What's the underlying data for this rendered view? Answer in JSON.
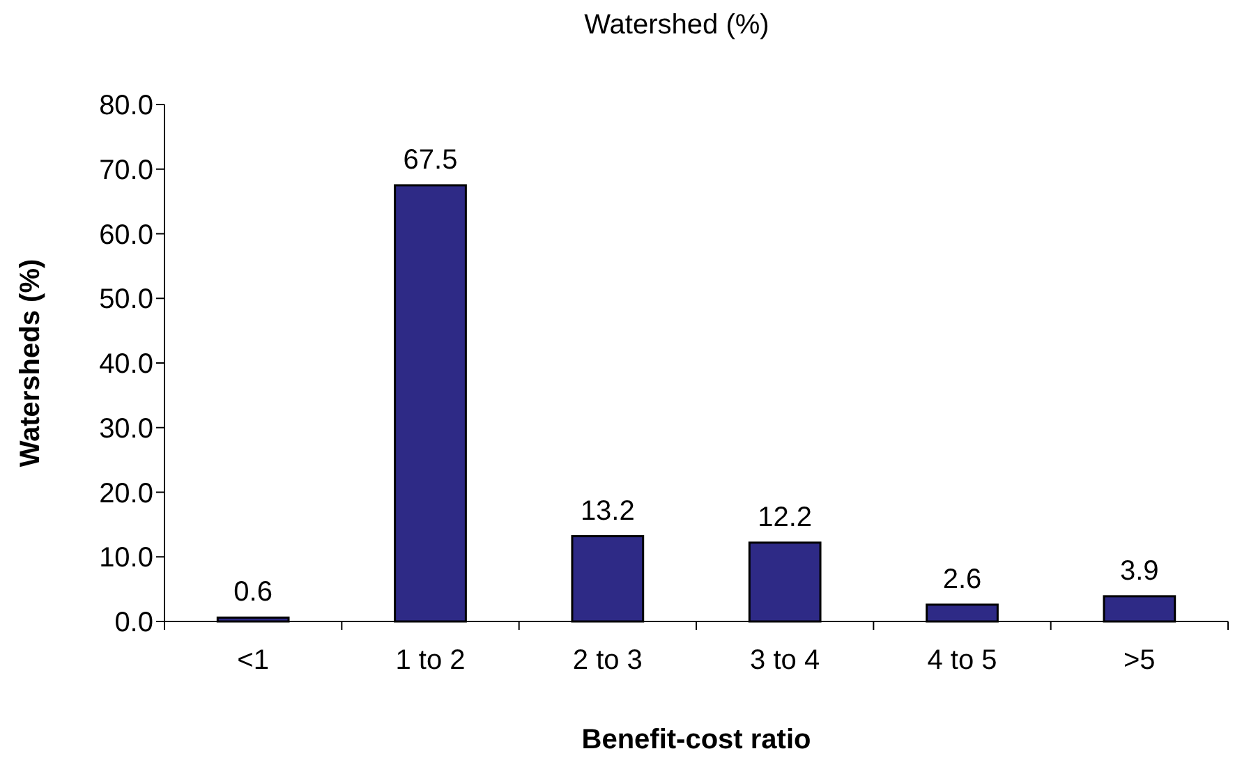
{
  "chart_data": {
    "type": "bar",
    "title": "Watershed (%)",
    "xlabel": "Benefit-cost ratio",
    "ylabel": "Watersheds (%)",
    "categories": [
      "<1",
      "1 to 2",
      "2 to 3",
      "3 to 4",
      "4 to 5",
      ">5"
    ],
    "values": [
      0.6,
      67.5,
      13.2,
      12.2,
      2.6,
      3.9
    ],
    "color": "#2e2a86",
    "data_labels": true,
    "ylim": [
      0,
      80
    ],
    "yticks": [
      {
        "value": 0,
        "label": "0.0"
      },
      {
        "value": 10,
        "label": "10.0"
      },
      {
        "value": 20,
        "label": "20.0"
      },
      {
        "value": 30,
        "label": "30.0"
      },
      {
        "value": 40,
        "label": "40.0"
      },
      {
        "value": 50,
        "label": "50.0"
      },
      {
        "value": 60,
        "label": "60.0"
      },
      {
        "value": 70,
        "label": "70.0"
      },
      {
        "value": 80,
        "label": "80.0"
      }
    ],
    "grid": false
  }
}
